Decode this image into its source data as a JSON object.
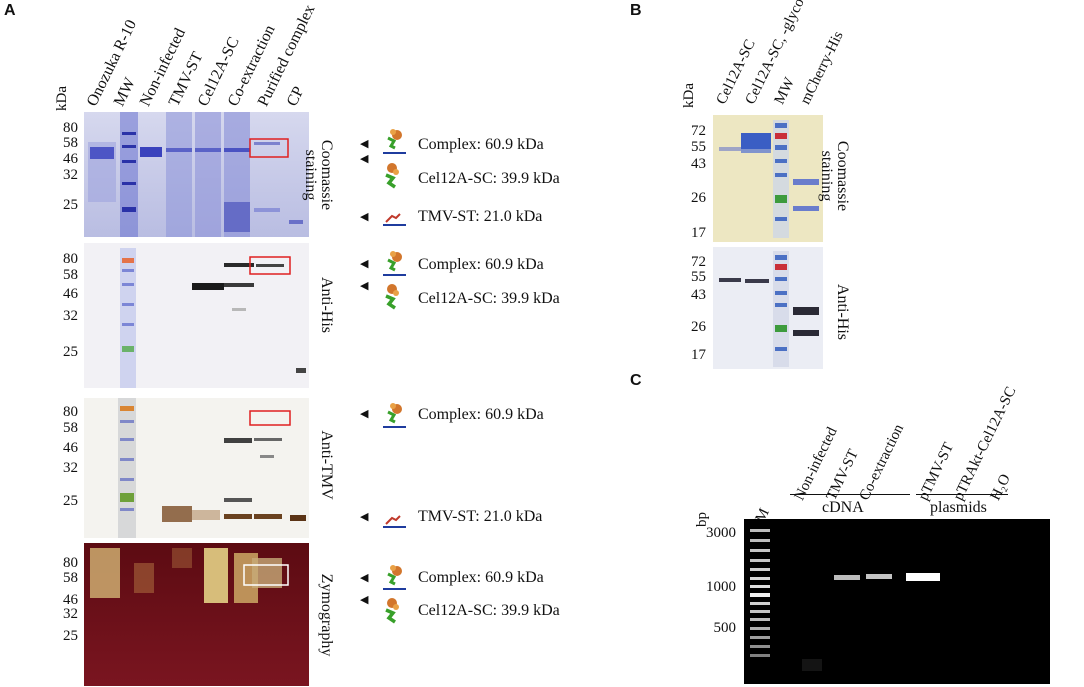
{
  "panels": {
    "A": {
      "letter": "A",
      "unit": "kDa",
      "lanes": [
        "Onozuka R-10",
        "MW",
        "Non-infected",
        "TMV-ST",
        "Cel12A-SC",
        "Co-extraction",
        "Purified complex",
        "CP"
      ],
      "markers": [
        "80",
        "58",
        "46",
        "32",
        "25"
      ],
      "blots": [
        {
          "label_lines": [
            "Coomassie",
            "staining"
          ],
          "annotations": [
            {
              "text": "Complex: 60.9 kDa",
              "icon": "complex-icon"
            },
            {
              "text": "Cel12A-SC: 39.9 kDa",
              "icon": "cel12a-icon"
            },
            {
              "text": "TMV-ST: 21.0 kDa",
              "icon": "tmv-st-icon"
            }
          ]
        },
        {
          "label_lines": [
            "Anti-His"
          ],
          "annotations": [
            {
              "text": "Complex: 60.9 kDa",
              "icon": "complex-icon"
            },
            {
              "text": "Cel12A-SC: 39.9 kDa",
              "icon": "cel12a-icon"
            }
          ]
        },
        {
          "label_lines": [
            "Anti-TMV"
          ],
          "annotations": [
            {
              "text": "Complex: 60.9 kDa",
              "icon": "complex-icon"
            },
            {
              "text": "TMV-ST: 21.0 kDa",
              "icon": "tmv-st-icon"
            }
          ]
        },
        {
          "label_lines": [
            "Zymography"
          ],
          "annotations": [
            {
              "text": "Complex: 60.9 kDa",
              "icon": "complex-icon"
            },
            {
              "text": "Cel12A-SC: 39.9 kDa",
              "icon": "cel12a-icon"
            }
          ]
        }
      ]
    },
    "B": {
      "letter": "B",
      "unit": "kDa",
      "lanes": [
        "Cel12A-SC",
        "Cel12A-SC, -glyco",
        "MW",
        "mCherry-His"
      ],
      "markers": [
        "72",
        "55",
        "43",
        "26",
        "17"
      ],
      "blots": [
        {
          "label_lines": [
            "Coomassie",
            "staining"
          ]
        },
        {
          "label_lines": [
            "Anti-His"
          ]
        }
      ]
    },
    "C": {
      "letter": "C",
      "unit": "bp",
      "lanes": [
        "M",
        "Non-infected",
        "TMV-ST",
        "Co-extraction",
        "pTMV-ST",
        "pTRAkt-Cel12A-SC",
        "H₂O"
      ],
      "groups": [
        "cDNA",
        "plasmids"
      ],
      "markers": [
        "3000",
        "1000",
        "500"
      ]
    }
  },
  "colors": {
    "coomassie_bg": "#c9cbe6",
    "coomassie_band": "#3f45c2",
    "western_bg": "#f3f2f4",
    "zymo_bg": "#6e1018",
    "dna_bg": "#000000",
    "highlight_red": "#e02020",
    "highlight_white": "#ffffff"
  }
}
